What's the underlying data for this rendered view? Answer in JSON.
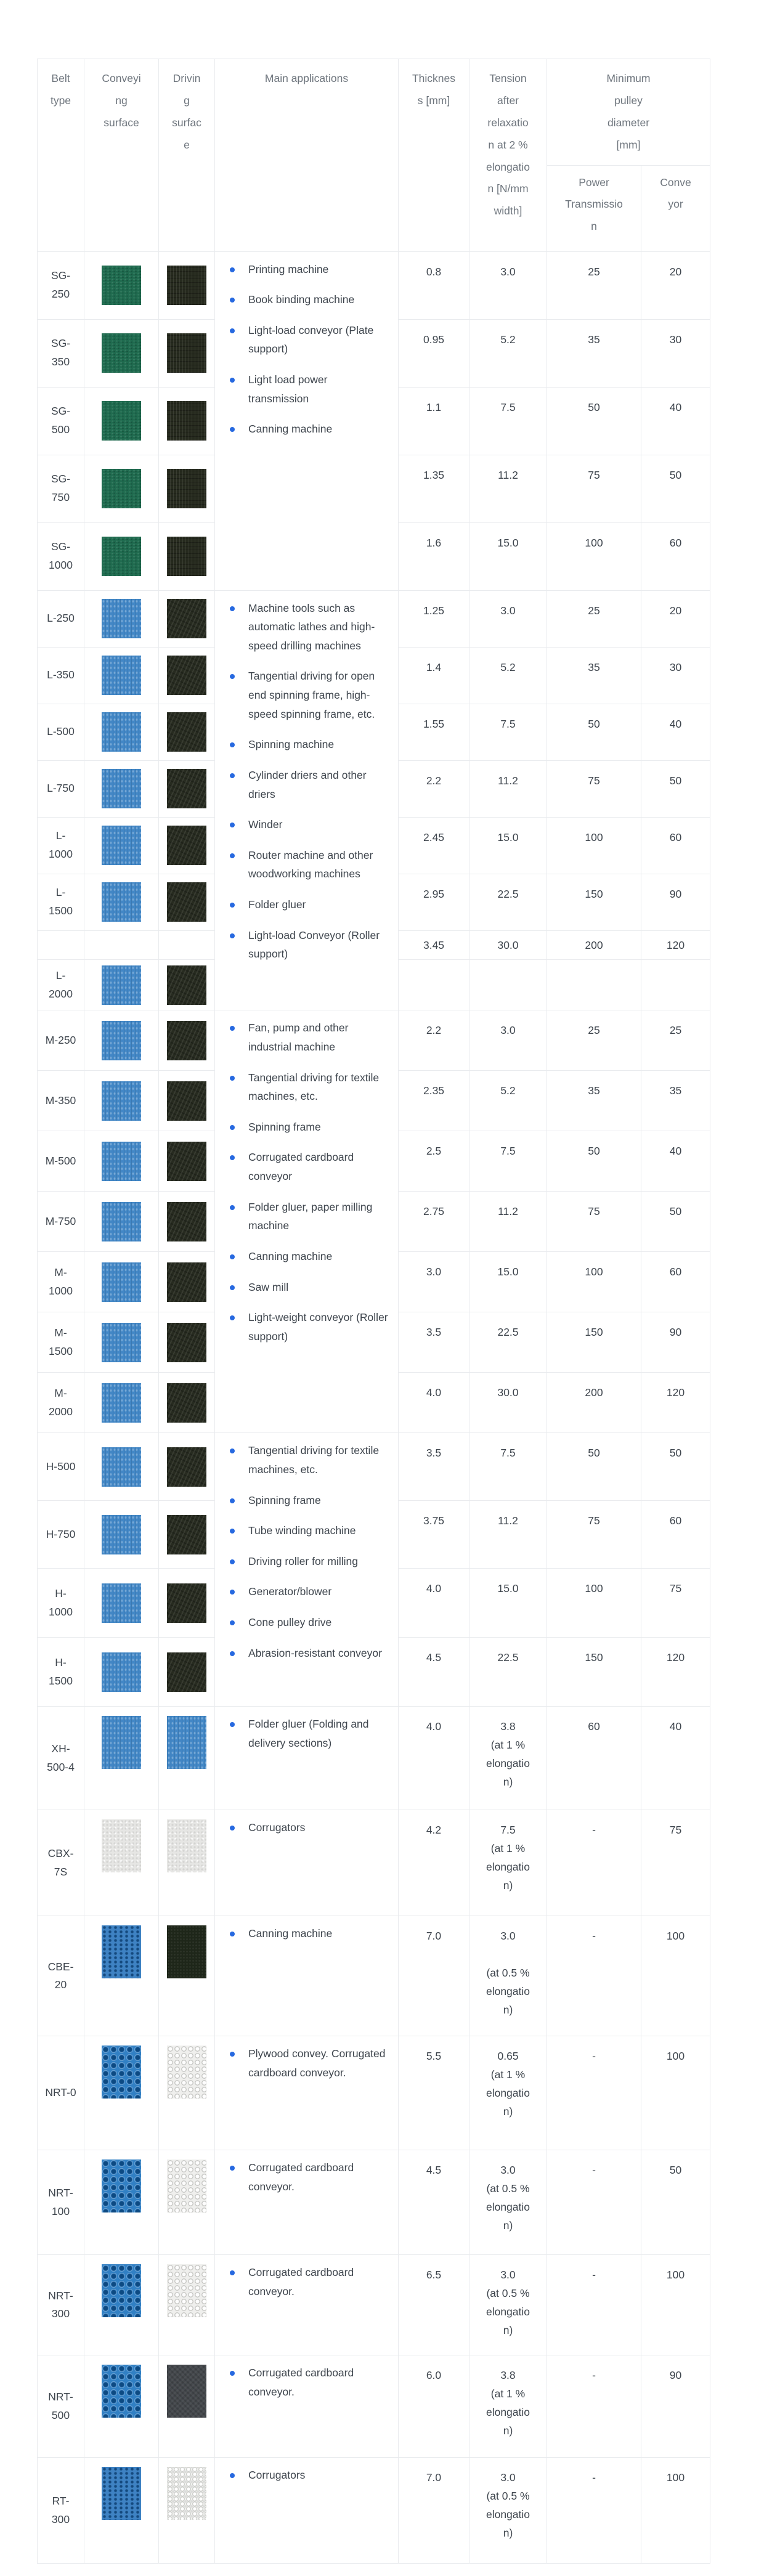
{
  "page": {
    "background": "#ffffff",
    "bullet_color": "#2769e0",
    "header_text_color": "#6e757d",
    "body_text_color": "#3f464e",
    "border_color": "#e9ebee"
  },
  "table": {
    "headers": {
      "belt_type": "Belt type",
      "conveying_surface": "Conveying surface",
      "driving_surface": "Driving surface",
      "main_applications": "Main applications",
      "thickness": "Thickness [mm]",
      "tension": "Tension after relaxation at 2 % elongation [N/mm width]",
      "min_pulley": "Minimum pulley diameter [mm]",
      "power_transmission": "Power Transmission",
      "conveyor": "Conveyor"
    },
    "groups": [
      {
        "id": "SG",
        "conveying_texture": "green-weave",
        "driving_texture": "dark-stripes",
        "applications": [
          "Printing machine",
          "Book binding machine",
          "Light-load conveyor (Plate support)",
          "Light load power transmission",
          "Canning machine"
        ],
        "rows": [
          {
            "belt": "SG-250",
            "thickness": "0.8",
            "tension": "3.0",
            "power": "25",
            "conveyor": "20"
          },
          {
            "belt": "SG-350",
            "thickness": "0.95",
            "tension": "5.2",
            "power": "35",
            "conveyor": "30"
          },
          {
            "belt": "SG-500",
            "thickness": "1.1",
            "tension": "7.5",
            "power": "50",
            "conveyor": "40"
          },
          {
            "belt": "SG-750",
            "thickness": "1.35",
            "tension": "11.2",
            "power": "75",
            "conveyor": "50"
          },
          {
            "belt": "SG-1000",
            "thickness": "1.6",
            "tension": "15.0",
            "power": "100",
            "conveyor": "60"
          }
        ]
      },
      {
        "id": "L",
        "conveying_texture": "blue-weave",
        "driving_texture": "dark-weave",
        "applications": [
          "Machine tools such as automatic lathes and high-speed drilling machines",
          "Tangential driving for open end spinning frame, high-speed spinning frame, etc.",
          "Spinning machine",
          "Cylinder driers and other driers",
          "Winder",
          "Router machine and other woodworking machines",
          "Folder gluer",
          "Light-load Conveyor (Roller support)"
        ],
        "rows": [
          {
            "belt": "L-250",
            "thickness": "1.25",
            "tension": "3.0",
            "power": "25",
            "conveyor": "20"
          },
          {
            "belt": "L-350",
            "thickness": "1.4",
            "tension": "5.2",
            "power": "35",
            "conveyor": "30"
          },
          {
            "belt": "L-500",
            "thickness": "1.55",
            "tension": "7.5",
            "power": "50",
            "conveyor": "40"
          },
          {
            "belt": "L-750",
            "thickness": "2.2",
            "tension": "11.2",
            "power": "75",
            "conveyor": "50"
          },
          {
            "belt": "L-1000",
            "thickness": "2.45",
            "tension": "15.0",
            "power": "100",
            "conveyor": "60"
          },
          {
            "belt": "L-1500",
            "thickness": "2.95",
            "tension": "22.5",
            "power": "150",
            "conveyor": "90"
          },
          {
            "belt": "",
            "no_swatch": true,
            "thickness": "3.45",
            "tension": "30.0",
            "power": "200",
            "conveyor": "120"
          },
          {
            "belt": "L-2000",
            "thickness": "",
            "tension": "",
            "power": "",
            "conveyor": ""
          }
        ]
      },
      {
        "id": "M",
        "conveying_texture": "blue-weave",
        "driving_texture": "dark-weave",
        "applications": [
          "Fan, pump and other industrial machine",
          "Tangential driving for textile machines, etc.",
          "Spinning frame",
          "Corrugated cardboard conveyor",
          "Folder gluer, paper milling machine",
          "Canning machine",
          "Saw mill",
          "Light-weight conveyor (Roller support)"
        ],
        "rows": [
          {
            "belt": "M-250",
            "thickness": "2.2",
            "tension": "3.0",
            "power": "25",
            "conveyor": "25"
          },
          {
            "belt": "M-350",
            "thickness": "2.35",
            "tension": "5.2",
            "power": "35",
            "conveyor": "35"
          },
          {
            "belt": "M-500",
            "thickness": "2.5",
            "tension": "7.5",
            "power": "50",
            "conveyor": "40"
          },
          {
            "belt": "M-750",
            "thickness": "2.75",
            "tension": "11.2",
            "power": "75",
            "conveyor": "50"
          },
          {
            "belt": "M-1000",
            "thickness": "3.0",
            "tension": "15.0",
            "power": "100",
            "conveyor": "60"
          },
          {
            "belt": "M-1500",
            "thickness": "3.5",
            "tension": "22.5",
            "power": "150",
            "conveyor": "90"
          },
          {
            "belt": "M-2000",
            "thickness": "4.0",
            "tension": "30.0",
            "power": "200",
            "conveyor": "120"
          }
        ]
      },
      {
        "id": "H",
        "conveying_texture": "blue-weave",
        "driving_texture": "dark-weave",
        "applications": [
          "Tangential driving for textile machines, etc.",
          "Spinning frame",
          "Tube winding machine",
          "Driving roller for milling",
          "Generator/blower",
          "Cone pulley drive",
          "Abrasion-resistant conveyor"
        ],
        "rows": [
          {
            "belt": "H-500",
            "thickness": "3.5",
            "tension": "7.5",
            "power": "50",
            "conveyor": "50"
          },
          {
            "belt": "H-750",
            "thickness": "3.75",
            "tension": "11.2",
            "power": "75",
            "conveyor": "60"
          },
          {
            "belt": "H-1000",
            "thickness": "4.0",
            "tension": "15.0",
            "power": "100",
            "conveyor": "75"
          },
          {
            "belt": "H-1500",
            "thickness": "4.5",
            "tension": "22.5",
            "power": "150",
            "conveyor": "120"
          }
        ]
      },
      {
        "id": "XH-500-4",
        "tall": true,
        "conveying_texture": "blue-weave",
        "driving_texture": "blue-weave",
        "applications": [
          "Folder gluer (Folding and delivery sections)"
        ],
        "rows": [
          {
            "belt": "XH-500-4",
            "thickness": "4.0",
            "tension": "3.8",
            "tension_note": "(at 1 % elongation)",
            "power": "60",
            "conveyor": "40"
          }
        ]
      },
      {
        "id": "CBX-7S",
        "tall": true,
        "conveying_texture": "gray-fuzz",
        "driving_texture": "gray-fuzz",
        "applications": [
          "Corrugators"
        ],
        "rows": [
          {
            "belt": "CBX-7S",
            "thickness": "4.2",
            "tension": "7.5",
            "tension_note": "(at 1 % elongation)",
            "power": "-",
            "conveyor": "75"
          }
        ]
      },
      {
        "id": "CBE-20",
        "tall": true,
        "conveying_texture": "blue-dots",
        "driving_texture": "dark-green",
        "applications": [
          "Canning machine"
        ],
        "rows": [
          {
            "belt": "CBE-20",
            "thickness": "7.0",
            "tension": "3.0",
            "tension_note": "(at 0.5 % elongation)",
            "tension_note_gap": true,
            "power": "-",
            "conveyor": "100"
          }
        ]
      },
      {
        "id": "NRT-0",
        "tall": true,
        "conveying_texture": "blue-knob",
        "driving_texture": "white-knob",
        "applications": [
          "Plywood convey. Corrugated cardboard conveyor."
        ],
        "rows": [
          {
            "belt": "NRT-0",
            "thickness": "5.5",
            "tension": "0.65",
            "tension_note": "(at 1 % elongation)",
            "power": "-",
            "conveyor": "100"
          }
        ]
      },
      {
        "id": "NRT-100",
        "tall": true,
        "conveying_texture": "blue-knob",
        "driving_texture": "white-knob",
        "applications": [
          "Corrugated cardboard conveyor."
        ],
        "rows": [
          {
            "belt": "NRT-100",
            "thickness": "4.5",
            "tension": "3.0",
            "tension_note": "(at 0.5 % elongation)",
            "power": "-",
            "conveyor": "50"
          }
        ]
      },
      {
        "id": "NRT-300",
        "tall": true,
        "conveying_texture": "blue-knob",
        "driving_texture": "white-knob",
        "applications": [
          "Corrugated cardboard conveyor."
        ],
        "rows": [
          {
            "belt": "NRT-300",
            "thickness": "6.5",
            "tension": "3.0",
            "tension_note": "(at 0.5 % elongation)",
            "power": "-",
            "conveyor": "100"
          }
        ]
      },
      {
        "id": "NRT-500",
        "tall": true,
        "conveying_texture": "blue-knob",
        "driving_texture": "dark-gray",
        "applications": [
          "Corrugated cardboard conveyor."
        ],
        "rows": [
          {
            "belt": "NRT-500",
            "thickness": "6.0",
            "tension": "3.8",
            "tension_note": "(at 1 % elongation)",
            "power": "-",
            "conveyor": "90"
          }
        ]
      },
      {
        "id": "RT-300",
        "tall": true,
        "conveying_texture": "blue-dots",
        "driving_texture": "white-weave",
        "applications": [
          "Corrugators"
        ],
        "rows": [
          {
            "belt": "RT-300",
            "thickness": "7.0",
            "tension": "3.0",
            "tension_note": "(at 0.5 % elongation)",
            "power": "-",
            "conveyor": "100"
          }
        ]
      }
    ]
  }
}
